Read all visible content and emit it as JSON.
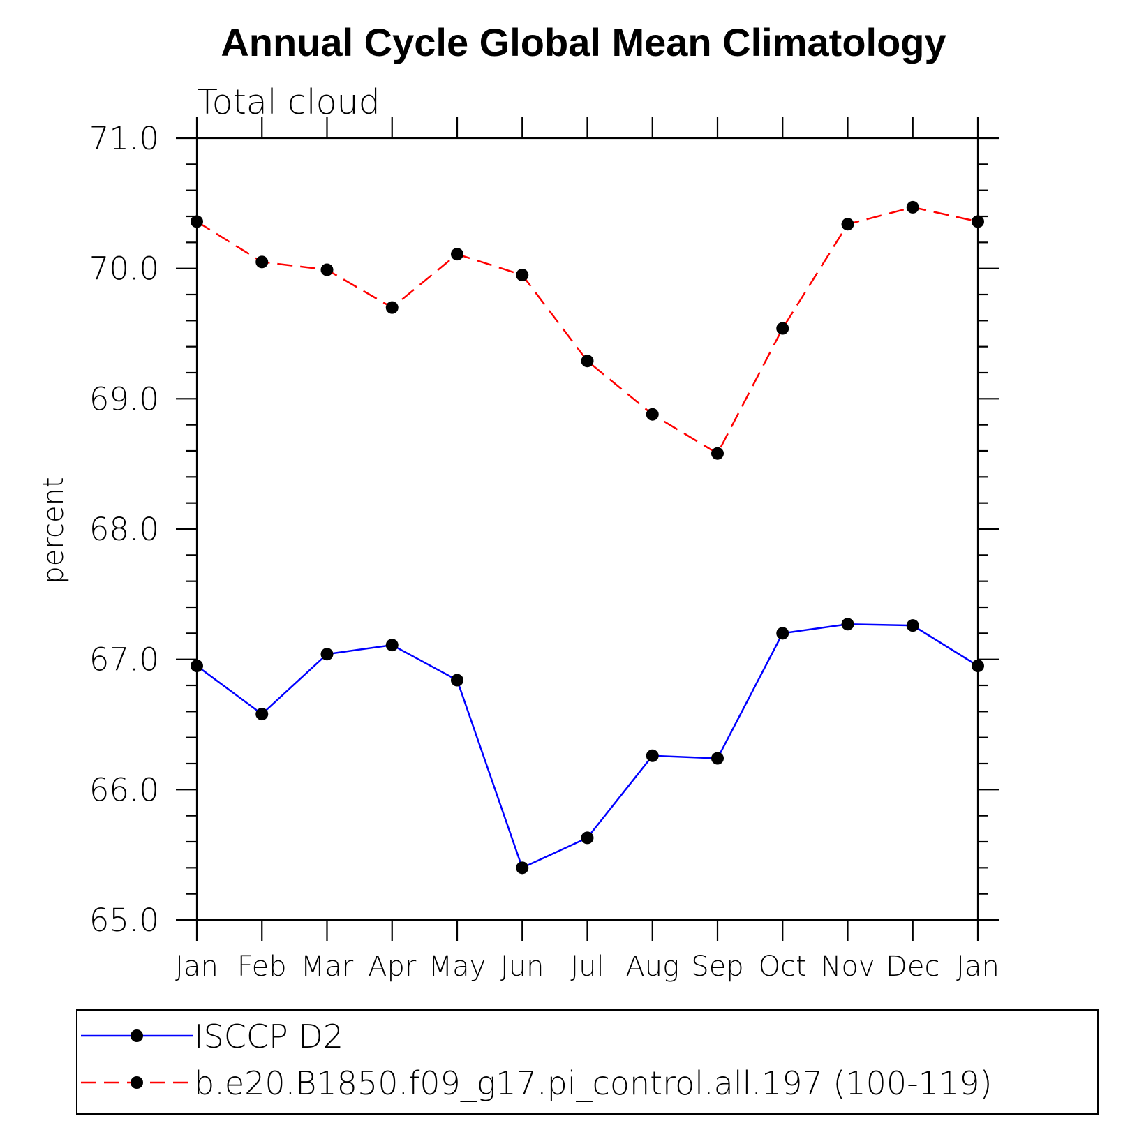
{
  "chart_data": {
    "type": "line",
    "title": "Annual Cycle Global Mean Climatology",
    "subtitle": "Total cloud",
    "xlabel": "",
    "ylabel": "percent",
    "categories": [
      "Jan",
      "Feb",
      "Mar",
      "Apr",
      "May",
      "Jun",
      "Jul",
      "Aug",
      "Sep",
      "Oct",
      "Nov",
      "Dec",
      "Jan"
    ],
    "ylim": [
      65.0,
      71.0
    ],
    "yticks": [
      "65.0",
      "66.0",
      "67.0",
      "68.0",
      "69.0",
      "70.0",
      "71.0"
    ],
    "grid": false,
    "legend_position": "bottom",
    "series": [
      {
        "name": "ISCCP D2",
        "color": "#0000ff",
        "dash": "solid",
        "marker": "circle",
        "values": [
          66.95,
          66.58,
          67.04,
          67.11,
          66.84,
          65.4,
          65.63,
          66.26,
          66.24,
          67.2,
          67.27,
          67.26,
          66.95
        ]
      },
      {
        "name": "b.e20.B1850.f09_g17.pi_control.all.197 (100-119)",
        "color": "#ff0000",
        "dash": "dashed",
        "marker": "circle",
        "values": [
          70.36,
          70.05,
          69.99,
          69.7,
          70.11,
          69.95,
          69.29,
          68.88,
          68.58,
          69.54,
          70.34,
          70.47,
          70.36
        ]
      }
    ]
  }
}
